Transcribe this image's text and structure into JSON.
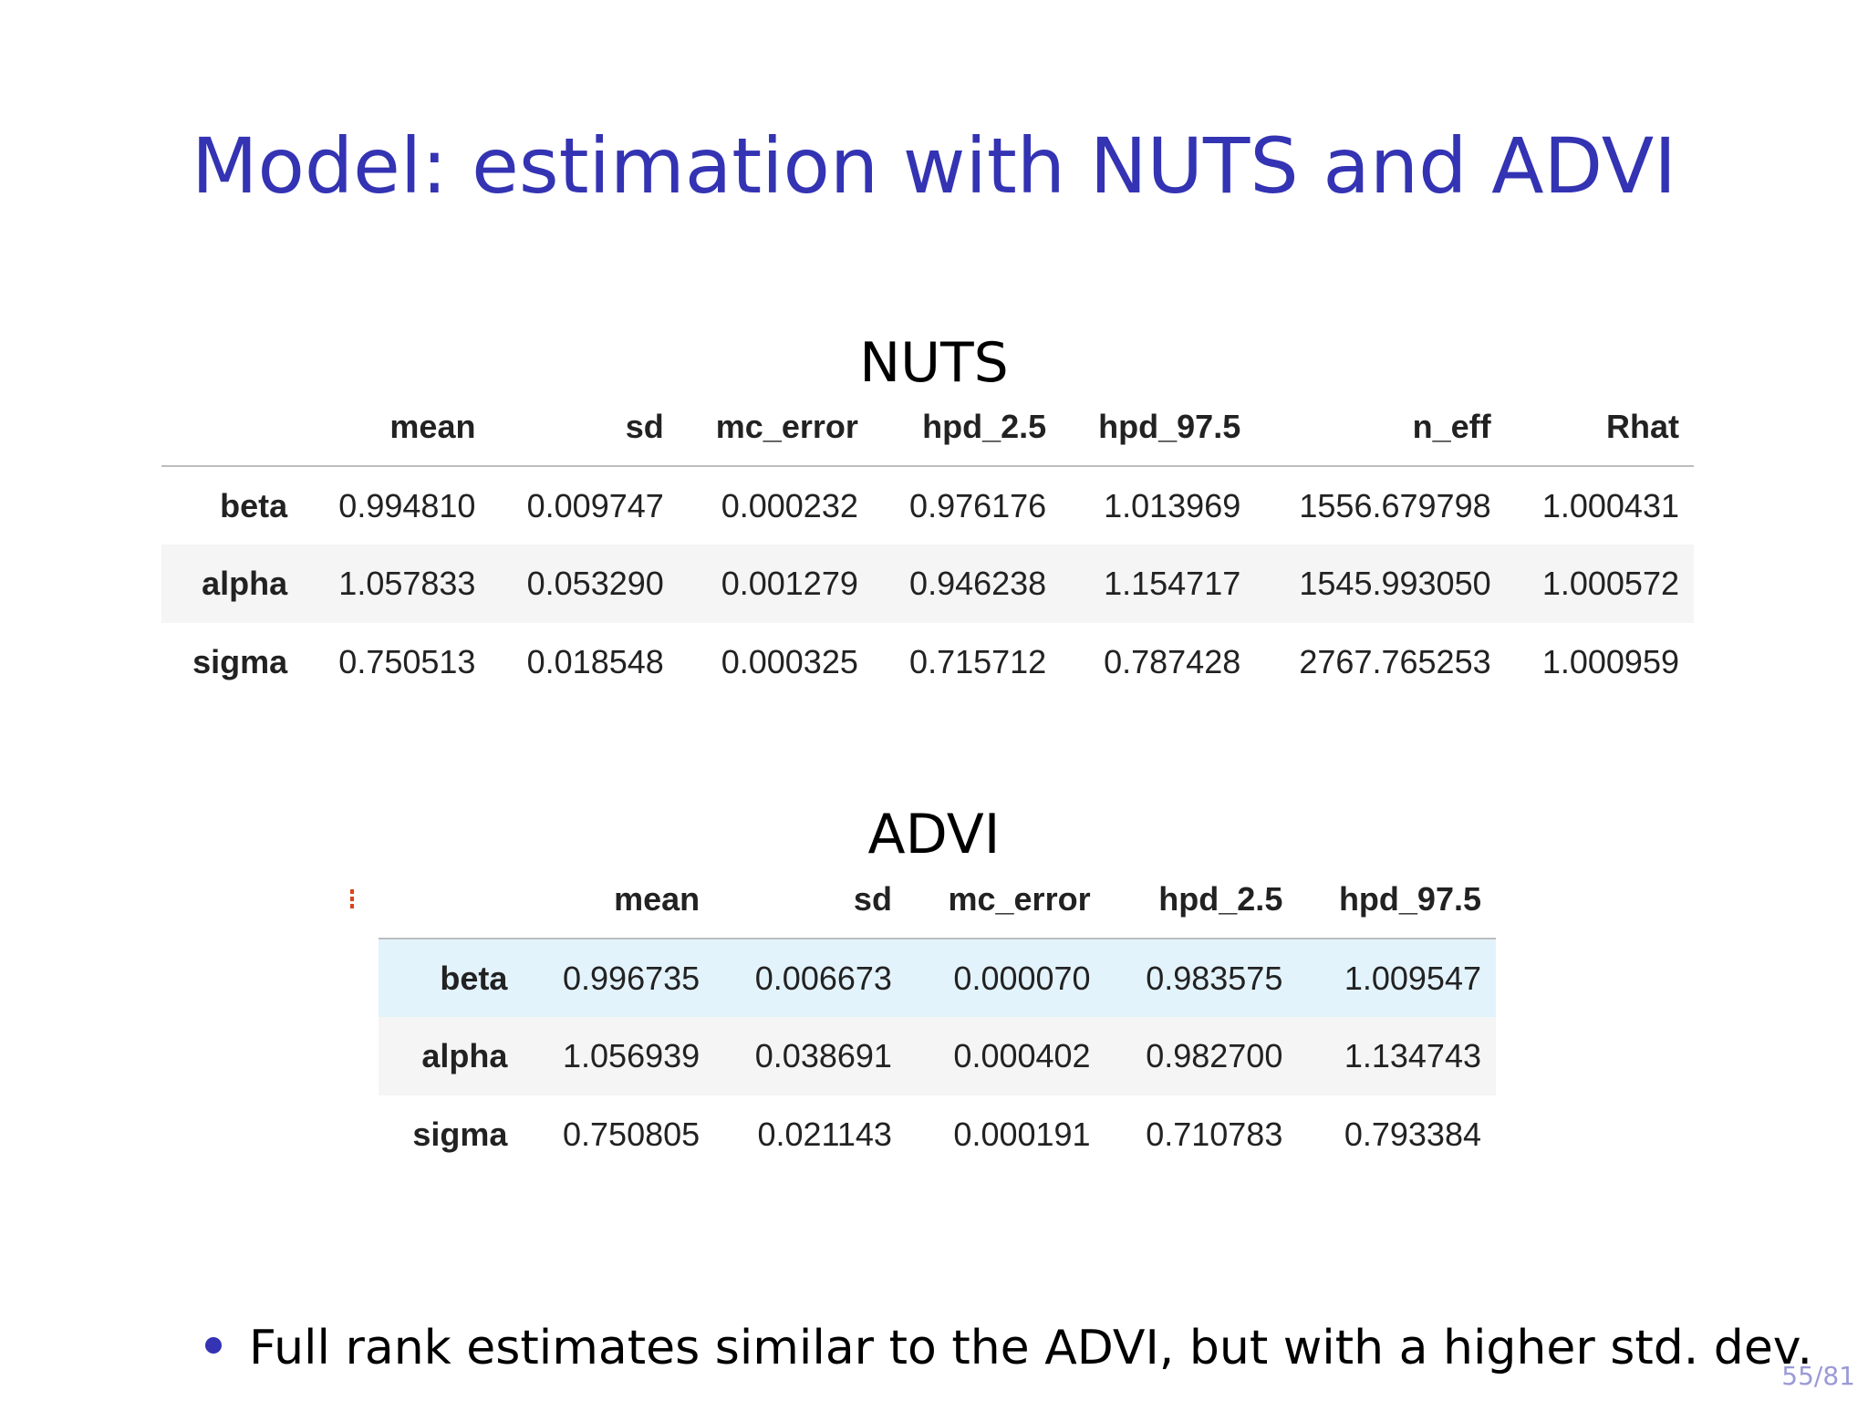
{
  "title": "Model: estimation with NUTS and ADVI",
  "nuts": {
    "caption": "NUTS",
    "columns": [
      "mean",
      "sd",
      "mc_error",
      "hpd_2.5",
      "hpd_97.5",
      "n_eff",
      "Rhat"
    ],
    "rows": [
      {
        "name": "beta",
        "values": [
          "0.994810",
          "0.009747",
          "0.000232",
          "0.976176",
          "1.013969",
          "1556.679798",
          "1.000431"
        ]
      },
      {
        "name": "alpha",
        "values": [
          "1.057833",
          "0.053290",
          "0.001279",
          "0.946238",
          "1.154717",
          "1545.993050",
          "1.000572"
        ]
      },
      {
        "name": "sigma",
        "values": [
          "0.750513",
          "0.018548",
          "0.000325",
          "0.715712",
          "0.787428",
          "2767.765253",
          "1.000959"
        ]
      }
    ]
  },
  "advi": {
    "caption": "ADVI",
    "columns": [
      "mean",
      "sd",
      "mc_error",
      "hpd_2.5",
      "hpd_97.5"
    ],
    "rows": [
      {
        "name": "beta",
        "values": [
          "0.996735",
          "0.006673",
          "0.000070",
          "0.983575",
          "1.009547"
        ]
      },
      {
        "name": "alpha",
        "values": [
          "1.056939",
          "0.038691",
          "0.000402",
          "0.982700",
          "1.134743"
        ]
      },
      {
        "name": "sigma",
        "values": [
          "0.750805",
          "0.021143",
          "0.000191",
          "0.710783",
          "0.793384"
        ]
      }
    ]
  },
  "bullet": "Full rank estimates similar to the ADVI, but with a higher std. dev.",
  "page_number": "55/81",
  "colors": {
    "title": "#3333b3",
    "hover_row": "#e3f3fc",
    "striped_row": "#f5f5f5"
  }
}
